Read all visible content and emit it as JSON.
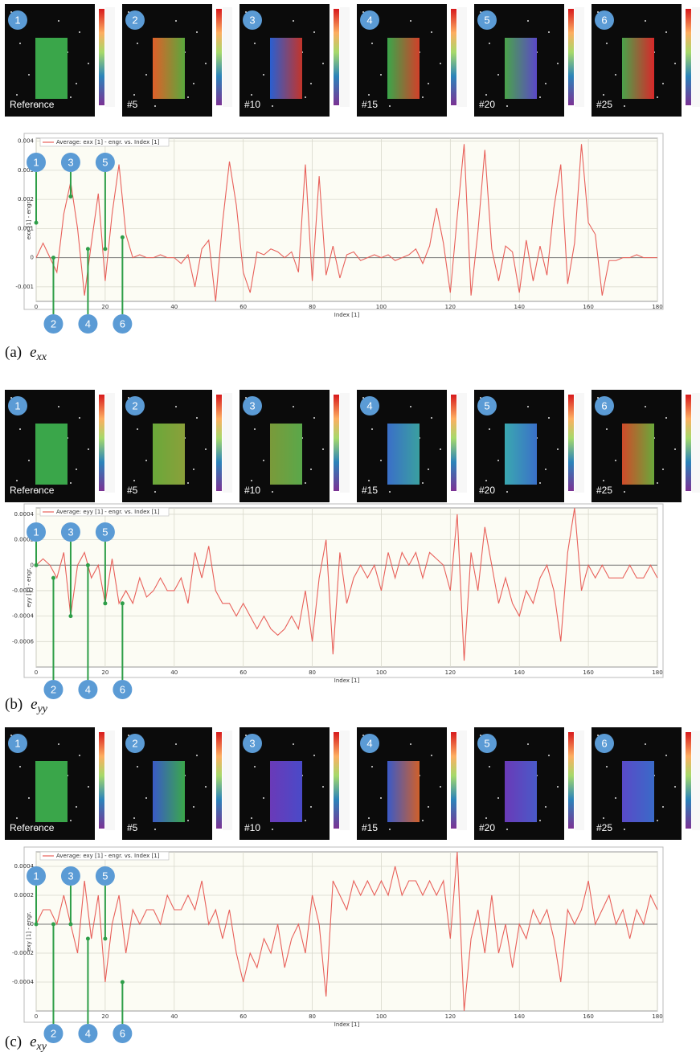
{
  "chart_data": [
    {
      "type": "line",
      "caption_label": "(a)",
      "caption_symbol": "e",
      "caption_subscript": "xx",
      "xlabel": "Index [1]",
      "ylabel": "exx [1] - engr.",
      "thumbnails": [
        {
          "number": "1",
          "label": "Reference"
        },
        {
          "number": "2",
          "label": "#5"
        },
        {
          "number": "3",
          "label": "#10"
        },
        {
          "number": "4",
          "label": "#15"
        },
        {
          "number": "5",
          "label": "#20"
        },
        {
          "number": "6",
          "label": "#25"
        }
      ],
      "markers": [
        {
          "label": "1",
          "x": 0,
          "y": 0.0012
        },
        {
          "label": "2",
          "x": 5,
          "y": 0
        },
        {
          "label": "3",
          "x": 10,
          "y": 0.0021
        },
        {
          "label": "4",
          "x": 15,
          "y": 0.0003
        },
        {
          "label": "5",
          "x": 20,
          "y": 0.0003
        },
        {
          "label": "6",
          "x": 25,
          "y": 0.0007
        }
      ],
      "xlim": [
        0,
        180
      ],
      "xticks": [
        0,
        20,
        40,
        60,
        80,
        100,
        120,
        140,
        160,
        180
      ],
      "ylim": [
        -0.0015,
        0.0041
      ],
      "yticks": [
        -0.001,
        0,
        0.001,
        0.002,
        0.003,
        0.004
      ],
      "grid": true,
      "x": [
        0,
        2,
        4,
        6,
        8,
        10,
        12,
        14,
        16,
        18,
        20,
        22,
        24,
        26,
        28,
        30,
        32,
        34,
        36,
        38,
        40,
        42,
        44,
        46,
        48,
        50,
        52,
        54,
        56,
        58,
        60,
        62,
        64,
        66,
        68,
        70,
        72,
        74,
        76,
        78,
        80,
        82,
        84,
        86,
        88,
        90,
        92,
        94,
        96,
        98,
        100,
        102,
        104,
        106,
        108,
        110,
        112,
        114,
        116,
        118,
        120,
        122,
        124,
        126,
        128,
        130,
        132,
        134,
        136,
        138,
        140,
        142,
        144,
        146,
        148,
        150,
        152,
        154,
        156,
        158,
        160,
        162,
        164,
        166,
        168,
        170,
        172,
        174,
        176,
        178,
        180
      ],
      "series": [
        {
          "name": "Average: exx [1] - engr. vs. Index [1]",
          "color": "#e8605a",
          "values": [
            0,
            0.0005,
            0,
            -0.0005,
            0.0015,
            0.0026,
            0.001,
            -0.0013,
            0.0005,
            0.0022,
            -0.0008,
            0.0015,
            0.0032,
            0.0008,
            0,
            0.0001,
            0,
            0,
            0.0001,
            0,
            0,
            -0.0002,
            0.0001,
            -0.001,
            0.0003,
            0.0006,
            -0.0015,
            0.0012,
            0.0033,
            0.0018,
            -0.0005,
            -0.0012,
            0.0002,
            0.0001,
            0.0003,
            0.0002,
            0,
            0.0002,
            -0.0005,
            0.0032,
            -0.0008,
            0.0028,
            -0.0006,
            0.0004,
            -0.0007,
            0.0001,
            0.0002,
            -0.0001,
            0,
            0.0001,
            0,
            0.0001,
            -0.0001,
            0,
            0.0001,
            0.0003,
            -0.0002,
            0.0004,
            0.0017,
            0.0005,
            -0.0012,
            0.0014,
            0.0039,
            -0.0013,
            0.0009,
            0.0037,
            0.0003,
            -0.0008,
            0.0004,
            0.0002,
            -0.0012,
            0.0006,
            -0.0008,
            0.0004,
            -0.0006,
            0.0017,
            0.0032,
            -0.0009,
            0.0005,
            0.0039,
            0.0012,
            0.0008,
            -0.0013,
            -0.0001,
            -0.0001,
            0,
            0,
            0.0001,
            0,
            0,
            0
          ]
        }
      ]
    },
    {
      "type": "line",
      "caption_label": "(b)",
      "caption_symbol": "e",
      "caption_subscript": "yy",
      "xlabel": "Index [1]",
      "ylabel": "eyy [1] - engr.",
      "thumbnails": [
        {
          "number": "1",
          "label": "Reference"
        },
        {
          "number": "2",
          "label": "#5"
        },
        {
          "number": "3",
          "label": "#10"
        },
        {
          "number": "4",
          "label": "#15"
        },
        {
          "number": "5",
          "label": "#20"
        },
        {
          "number": "6",
          "label": "#25"
        }
      ],
      "markers": [
        {
          "label": "1",
          "x": 0,
          "y": 0
        },
        {
          "label": "2",
          "x": 5,
          "y": -0.0001
        },
        {
          "label": "3",
          "x": 10,
          "y": -0.0004
        },
        {
          "label": "4",
          "x": 15,
          "y": 0
        },
        {
          "label": "5",
          "x": 20,
          "y": -0.0003
        },
        {
          "label": "6",
          "x": 25,
          "y": -0.0003
        }
      ],
      "xlim": [
        0,
        180
      ],
      "xticks": [
        0,
        20,
        40,
        60,
        80,
        100,
        120,
        140,
        160,
        180
      ],
      "ylim": [
        -0.0008,
        0.00045
      ],
      "yticks": [
        -0.0006,
        -0.0004,
        -0.0002,
        0,
        0.0002,
        0.0004
      ],
      "grid": true,
      "x": [
        0,
        2,
        4,
        6,
        8,
        10,
        12,
        14,
        16,
        18,
        20,
        22,
        24,
        26,
        28,
        30,
        32,
        34,
        36,
        38,
        40,
        42,
        44,
        46,
        48,
        50,
        52,
        54,
        56,
        58,
        60,
        62,
        64,
        66,
        68,
        70,
        72,
        74,
        76,
        78,
        80,
        82,
        84,
        86,
        88,
        90,
        92,
        94,
        96,
        98,
        100,
        102,
        104,
        106,
        108,
        110,
        112,
        114,
        116,
        118,
        120,
        122,
        124,
        126,
        128,
        130,
        132,
        134,
        136,
        138,
        140,
        142,
        144,
        146,
        148,
        150,
        152,
        154,
        156,
        158,
        160,
        162,
        164,
        166,
        168,
        170,
        172,
        174,
        176,
        178,
        180
      ],
      "series": [
        {
          "name": "Average: eyy [1] - engr. vs. Index [1]",
          "color": "#e8605a",
          "values": [
            0,
            5e-05,
            0,
            -0.0001,
            0.0001,
            -0.0004,
            0,
            0.0001,
            -0.0001,
            0,
            -0.0003,
            5e-05,
            -0.0003,
            -0.0002,
            -0.0003,
            -0.0001,
            -0.00025,
            -0.0002,
            -0.0001,
            -0.0002,
            -0.0002,
            -0.0001,
            -0.0003,
            0.0001,
            -0.0001,
            0.00015,
            -0.0002,
            -0.0003,
            -0.0003,
            -0.0004,
            -0.0003,
            -0.0004,
            -0.0005,
            -0.0004,
            -0.0005,
            -0.00055,
            -0.0005,
            -0.0004,
            -0.0005,
            -0.0002,
            -0.0006,
            -0.0001,
            0.0002,
            -0.0007,
            0.0001,
            -0.0003,
            -0.0001,
            0,
            -0.0001,
            0,
            -0.0002,
            0.0001,
            -0.0001,
            0.0001,
            0,
            0.0001,
            -0.0001,
            0.0001,
            5e-05,
            0,
            -0.0002,
            0.0004,
            -0.00075,
            0.0001,
            -0.0002,
            0.0003,
            0,
            -0.0003,
            -0.0001,
            -0.0003,
            -0.0004,
            -0.0002,
            -0.0003,
            -0.0001,
            0,
            -0.0002,
            -0.0006,
            0.0001,
            0.00045,
            -0.0002,
            0,
            -0.0001,
            0,
            -0.0001,
            -0.0001,
            -0.0001,
            0,
            -0.0001,
            -0.0001,
            0,
            -0.0001
          ]
        }
      ]
    },
    {
      "type": "line",
      "caption_label": "(c)",
      "caption_symbol": "e",
      "caption_subscript": "xy",
      "xlabel": "Index [1]",
      "ylabel": "exy [1] - engr.",
      "thumbnails": [
        {
          "number": "1",
          "label": "Reference"
        },
        {
          "number": "2",
          "label": "#5"
        },
        {
          "number": "3",
          "label": "#10"
        },
        {
          "number": "4",
          "label": "#15"
        },
        {
          "number": "5",
          "label": "#20"
        },
        {
          "number": "6",
          "label": "#25"
        }
      ],
      "markers": [
        {
          "label": "1",
          "x": 0,
          "y": 0
        },
        {
          "label": "2",
          "x": 5,
          "y": 0
        },
        {
          "label": "3",
          "x": 10,
          "y": 0
        },
        {
          "label": "4",
          "x": 15,
          "y": -0.0001
        },
        {
          "label": "5",
          "x": 20,
          "y": -0.0001
        },
        {
          "label": "6",
          "x": 25,
          "y": -0.0004
        }
      ],
      "xlim": [
        0,
        180
      ],
      "xticks": [
        0,
        20,
        40,
        60,
        80,
        100,
        120,
        140,
        160,
        180
      ],
      "ylim": [
        -0.0006,
        0.0005
      ],
      "yticks": [
        -0.0004,
        -0.0002,
        0,
        0.0002,
        0.0004
      ],
      "grid": true,
      "x": [
        0,
        2,
        4,
        6,
        8,
        10,
        12,
        14,
        16,
        18,
        20,
        22,
        24,
        26,
        28,
        30,
        32,
        34,
        36,
        38,
        40,
        42,
        44,
        46,
        48,
        50,
        52,
        54,
        56,
        58,
        60,
        62,
        64,
        66,
        68,
        70,
        72,
        74,
        76,
        78,
        80,
        82,
        84,
        86,
        88,
        90,
        92,
        94,
        96,
        98,
        100,
        102,
        104,
        106,
        108,
        110,
        112,
        114,
        116,
        118,
        120,
        122,
        124,
        126,
        128,
        130,
        132,
        134,
        136,
        138,
        140,
        142,
        144,
        146,
        148,
        150,
        152,
        154,
        156,
        158,
        160,
        162,
        164,
        166,
        168,
        170,
        172,
        174,
        176,
        178,
        180
      ],
      "series": [
        {
          "name": "Average: exy [1] - engr. vs. Index [1]",
          "color": "#e8605a",
          "values": [
            0,
            0.0001,
            0.0001,
            0,
            0.0002,
            0,
            -0.0002,
            0.0003,
            -0.0001,
            0.0002,
            -0.0004,
            0,
            0.0002,
            -0.0002,
            0.0001,
            0,
            0.0001,
            0.0001,
            0,
            0.0002,
            0.0001,
            0.0001,
            0.0002,
            0.0001,
            0.0003,
            0,
            0.0001,
            -0.0001,
            0.0001,
            -0.0002,
            -0.0004,
            -0.0002,
            -0.0003,
            -0.0001,
            -0.0002,
            0,
            -0.0003,
            -0.0001,
            0,
            -0.0002,
            0.0002,
            0,
            -0.0005,
            0.0003,
            0.0002,
            0.0001,
            0.0003,
            0.0002,
            0.0003,
            0.0002,
            0.0003,
            0.0002,
            0.0004,
            0.0002,
            0.0003,
            0.0003,
            0.0002,
            0.0003,
            0.0002,
            0.0003,
            -0.0001,
            0.0005,
            -0.0006,
            -0.0001,
            0.0001,
            -0.0002,
            0.0002,
            -0.0002,
            0,
            -0.0003,
            0,
            -0.0001,
            0.0001,
            0,
            0.0001,
            -0.0001,
            -0.0004,
            0.0001,
            0,
            0.0001,
            0.0003,
            0,
            0.0001,
            0.0002,
            0,
            0.0001,
            -0.0001,
            0.0001,
            0,
            0.0002,
            0.0001
          ]
        }
      ]
    }
  ]
}
